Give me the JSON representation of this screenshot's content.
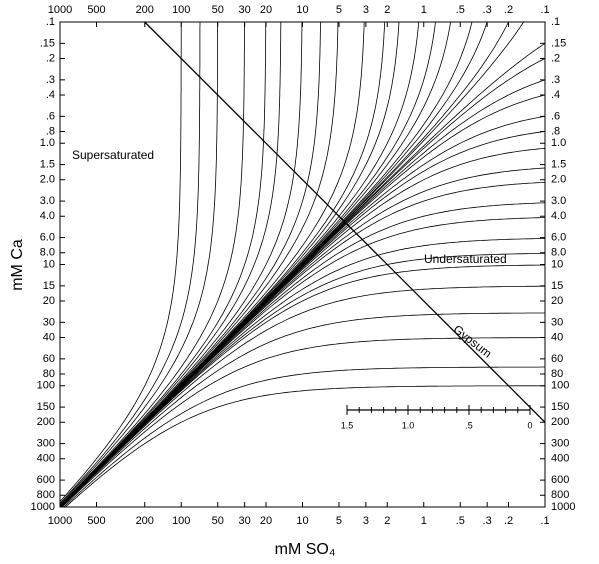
{
  "chart_data": {
    "type": "line",
    "xlabel": "mM SO₄",
    "ylabel": "mM Ca",
    "xscale": "log",
    "yscale": "log",
    "xlim": [
      1000,
      0.1
    ],
    "ylim": [
      1000,
      0.1
    ],
    "xticks": [
      1000,
      500,
      200,
      100,
      50,
      30,
      20,
      10,
      5,
      3,
      2,
      1,
      {
        "value": 0.5,
        "label": ".5"
      },
      {
        "value": 0.3,
        "label": ".3"
      },
      {
        "value": 0.2,
        "label": ".2"
      },
      {
        "value": 0.1,
        "label": ".1"
      }
    ],
    "yticks": [
      {
        "value": 0.1,
        "label": ".1"
      },
      {
        "value": 0.15,
        "label": ".15"
      },
      {
        "value": 0.2,
        "label": ".2"
      },
      {
        "value": 0.3,
        "label": ".3"
      },
      {
        "value": 0.4,
        "label": ".4"
      },
      {
        "value": 0.6,
        "label": ".6"
      },
      {
        "value": 0.8,
        "label": ".8"
      },
      {
        "value": 1,
        "label": "1.0"
      },
      {
        "value": 1.5,
        "label": "1.5"
      },
      {
        "value": 2,
        "label": "2.0"
      },
      {
        "value": 3,
        "label": "3.0"
      },
      {
        "value": 4,
        "label": "4.0"
      },
      {
        "value": 6,
        "label": "6.0"
      },
      {
        "value": 8,
        "label": "8.0"
      },
      10,
      15,
      20,
      30,
      40,
      60,
      80,
      100,
      150,
      200,
      300,
      400,
      600,
      800,
      1000
    ],
    "color": "#000000",
    "ca_excess_curves": [
      0.05,
      0.1,
      0.2,
      0.3,
      0.5,
      0.7,
      1,
      1.5,
      2,
      3,
      4,
      6,
      8,
      10,
      15,
      25,
      40,
      70,
      100
    ],
    "so4_excess_curves": [
      0.05,
      0.1,
      0.2,
      0.3,
      0.5,
      0.7,
      1,
      1.5,
      2,
      3,
      5,
      7,
      10,
      15,
      20,
      30,
      50,
      70,
      100
    ],
    "gypsum": {
      "label": "Gypsum",
      "x": [
        200,
        0.1
      ],
      "y": [
        0.1,
        200
      ]
    },
    "annotations": [
      "Supersaturated",
      "Undersaturated"
    ],
    "inset_scale": {
      "xlim": [
        1.5,
        0
      ],
      "ticks": [
        1.5,
        {
          "value": 1,
          "label": "1.0"
        },
        {
          "value": 0.5,
          "label": ".5"
        },
        0
      ],
      "minor_ticks": [
        1.4,
        1.3,
        1.2,
        1.1,
        0.9,
        0.8,
        0.7,
        0.6,
        0.4,
        0.3,
        0.2,
        0.1
      ]
    }
  }
}
